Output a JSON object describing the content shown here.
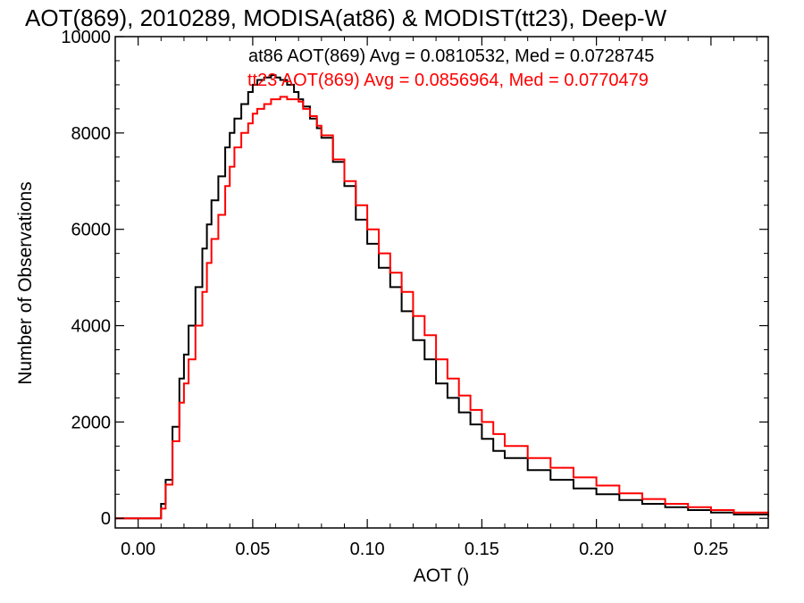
{
  "chart_data": {
    "type": "line",
    "title": "AOT(869), 2010289, MODISA(at86) & MODIST(tt23), Deep-W",
    "xlabel": "AOT ()",
    "ylabel": "Number of Observations",
    "xlim": [
      -0.01,
      0.275
    ],
    "ylim": [
      -200,
      10000
    ],
    "x_ticks": [
      "0.00",
      "0.05",
      "0.10",
      "0.15",
      "0.20",
      "0.25"
    ],
    "y_ticks": [
      "0",
      "2000",
      "4000",
      "6000",
      "8000",
      "10000"
    ],
    "x_tick_values": [
      0.0,
      0.05,
      0.1,
      0.15,
      0.2,
      0.25
    ],
    "y_tick_values": [
      0,
      2000,
      4000,
      6000,
      8000,
      10000
    ],
    "legend_position": "top-right",
    "annotations": [
      "at86 AOT(869) Avg = 0.0810532, Med = 0.0728745",
      "tt23 AOT(869) Avg = 0.0856964, Med = 0.0770479"
    ],
    "series": [
      {
        "name": "at86",
        "color": "#000000",
        "x": [
          -0.01,
          0.0,
          0.005,
          0.008,
          0.009,
          0.01,
          0.012,
          0.015,
          0.018,
          0.02,
          0.022,
          0.025,
          0.028,
          0.03,
          0.032,
          0.035,
          0.038,
          0.04,
          0.042,
          0.045,
          0.048,
          0.05,
          0.052,
          0.055,
          0.058,
          0.06,
          0.062,
          0.065,
          0.068,
          0.07,
          0.072,
          0.075,
          0.078,
          0.08,
          0.085,
          0.09,
          0.095,
          0.1,
          0.105,
          0.11,
          0.115,
          0.12,
          0.125,
          0.13,
          0.135,
          0.14,
          0.145,
          0.15,
          0.155,
          0.16,
          0.17,
          0.18,
          0.19,
          0.2,
          0.21,
          0.22,
          0.23,
          0.24,
          0.25,
          0.26,
          0.275
        ],
        "y": [
          0,
          0,
          0,
          0,
          0,
          300,
          800,
          1900,
          2900,
          3400,
          4000,
          4800,
          5600,
          6100,
          6600,
          7100,
          7700,
          8000,
          8300,
          8600,
          8850,
          9000,
          9100,
          9150,
          9200,
          9150,
          9100,
          9000,
          8850,
          8700,
          8550,
          8300,
          8100,
          7900,
          7400,
          6900,
          6200,
          5700,
          5200,
          4800,
          4300,
          3700,
          3300,
          2800,
          2500,
          2200,
          1950,
          1650,
          1400,
          1250,
          1000,
          800,
          620,
          500,
          380,
          300,
          230,
          170,
          120,
          80,
          40
        ]
      },
      {
        "name": "tt23",
        "color": "#ff0000",
        "x": [
          -0.01,
          0.0,
          0.005,
          0.009,
          0.01,
          0.012,
          0.015,
          0.018,
          0.02,
          0.022,
          0.025,
          0.028,
          0.03,
          0.032,
          0.035,
          0.038,
          0.04,
          0.042,
          0.045,
          0.048,
          0.05,
          0.052,
          0.055,
          0.058,
          0.06,
          0.062,
          0.065,
          0.068,
          0.07,
          0.072,
          0.075,
          0.078,
          0.08,
          0.085,
          0.09,
          0.095,
          0.1,
          0.105,
          0.11,
          0.115,
          0.12,
          0.125,
          0.13,
          0.135,
          0.14,
          0.145,
          0.15,
          0.155,
          0.16,
          0.17,
          0.18,
          0.19,
          0.2,
          0.21,
          0.22,
          0.23,
          0.24,
          0.25,
          0.26,
          0.275
        ],
        "y": [
          0,
          0,
          0,
          0,
          200,
          700,
          1600,
          2400,
          2800,
          3300,
          4000,
          4700,
          5300,
          5800,
          6300,
          6900,
          7300,
          7700,
          8000,
          8200,
          8400,
          8500,
          8600,
          8700,
          8700,
          8750,
          8700,
          8700,
          8650,
          8500,
          8350,
          8150,
          7950,
          7450,
          7000,
          6500,
          6000,
          5500,
          5100,
          4700,
          4200,
          3800,
          3300,
          2900,
          2550,
          2250,
          2000,
          1750,
          1500,
          1250,
          1050,
          850,
          680,
          520,
          400,
          300,
          230,
          170,
          120,
          60
        ]
      }
    ]
  }
}
